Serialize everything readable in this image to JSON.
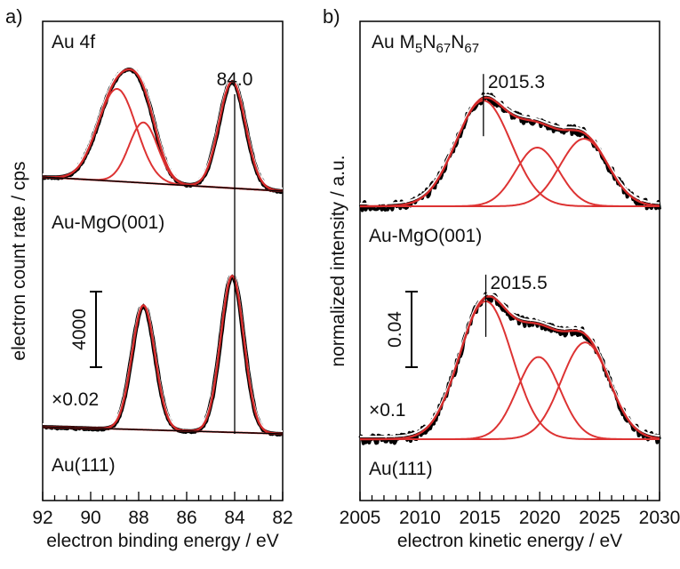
{
  "colors": {
    "data": "#000000",
    "envelope": "#ffffff",
    "fit": "#d42a2a",
    "component": "#dd3333",
    "axis": "#000000"
  },
  "chart_data": [
    {
      "panel": "a)",
      "type": "line",
      "title": "Au 4f",
      "xlabel": "electron binding energy / eV",
      "ylabel": "electron count rate / cps",
      "xlim": [
        92,
        82
      ],
      "x_reversed": true,
      "xticks": [
        92,
        90,
        88,
        86,
        84,
        82
      ],
      "grid": false,
      "scale_bar": {
        "label": "4000"
      },
      "reference_line": {
        "x": 84.0,
        "label": "84.0"
      },
      "spectra": [
        {
          "label": "Au-MgO(001)",
          "factor": "",
          "peaks": [
            {
              "center": 88.9,
              "height": 0.26,
              "width": 0.8
            },
            {
              "center": 87.8,
              "height": 0.17,
              "width": 0.6
            },
            {
              "center": 84.1,
              "height": 0.3,
              "width": 0.55
            }
          ],
          "baseline": [
            0.0,
            0.04
          ]
        },
        {
          "label": "Au(111)",
          "factor": "×0.02",
          "peaks": [
            {
              "center": 87.8,
              "height": 0.35,
              "width": 0.48
            },
            {
              "center": 84.1,
              "height": 0.44,
              "width": 0.48
            }
          ],
          "baseline": [
            0.0,
            0.02
          ]
        }
      ]
    },
    {
      "panel": "b)",
      "type": "line",
      "title": "Au M",
      "title_parts": {
        "main": "Au M",
        "sub1": "5",
        "mid1": "N",
        "sub2": "67",
        "mid2": "N",
        "sub3": "67"
      },
      "xlabel": "electron kinetic energy / eV",
      "ylabel": "normalized intensity / a.u.",
      "xlim": [
        2005,
        2030
      ],
      "xticks": [
        2005,
        2010,
        2015,
        2020,
        2025,
        2030
      ],
      "grid": false,
      "scale_bar": {
        "label": "0.04"
      },
      "spectra": [
        {
          "label": "Au-MgO(001)",
          "factor": "",
          "peak_label": "2015.3",
          "peak_label_x": 2015.3,
          "peaks": [
            {
              "center": 2015.3,
              "height": 0.36,
              "width": 2.3
            },
            {
              "center": 2019.8,
              "height": 0.2,
              "width": 1.8
            },
            {
              "center": 2023.7,
              "height": 0.23,
              "width": 2.0
            }
          ]
        },
        {
          "label": "Au(111)",
          "factor": "×0.1",
          "peak_label": "2015.5",
          "peak_label_x": 2015.5,
          "peaks": [
            {
              "center": 2015.5,
              "height": 0.47,
              "width": 2.2
            },
            {
              "center": 2019.9,
              "height": 0.28,
              "width": 1.8
            },
            {
              "center": 2023.8,
              "height": 0.33,
              "width": 2.0
            }
          ]
        }
      ]
    }
  ]
}
